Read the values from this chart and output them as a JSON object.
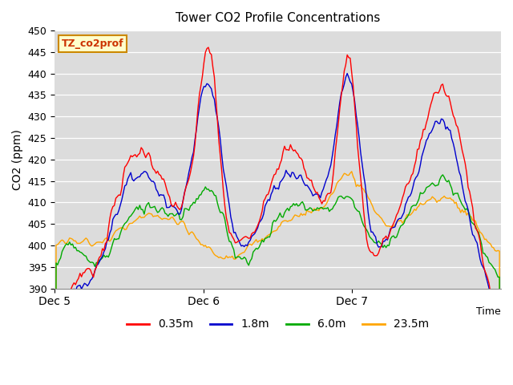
{
  "title": "Tower CO2 Profile Concentrations",
  "ylabel": "CO2 (ppm)",
  "ylim": [
    390,
    450
  ],
  "yticks": [
    390,
    395,
    400,
    405,
    410,
    415,
    420,
    425,
    430,
    435,
    440,
    445,
    450
  ],
  "xtick_pos": [
    0,
    1,
    2
  ],
  "xtick_labels": [
    "Dec 5",
    "Dec 6",
    "Dec 7"
  ],
  "legend_label": "TZ_co2prof",
  "series_labels": [
    "0.35m",
    "1.8m",
    "6.0m",
    "23.5m"
  ],
  "series_colors": [
    "#ff0000",
    "#0000cd",
    "#00aa00",
    "#ffa500"
  ],
  "plot_bg_color": "#dcdcdc",
  "n_points": 300,
  "xlim": [
    0,
    3
  ]
}
